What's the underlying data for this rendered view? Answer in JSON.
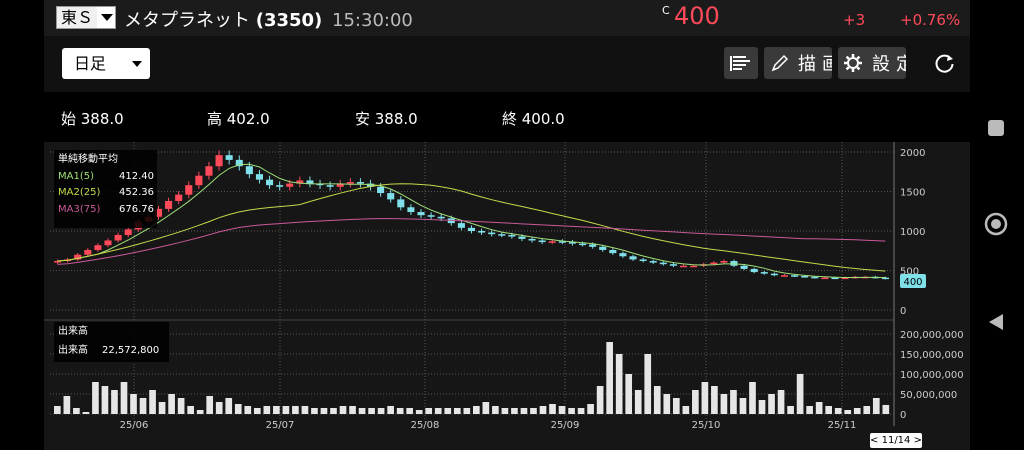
{
  "header": {
    "exchange": "東Ｓ",
    "name": "メタプラネット",
    "code": "(3350)",
    "time": "15:30:00",
    "flag": "C",
    "price": "400",
    "change": "+3",
    "change_pct": "+0.76%"
  },
  "toolbar": {
    "period": "日足",
    "draw_label": "描画",
    "settings_label": "設定"
  },
  "ohlc": {
    "open": "始 388.0",
    "high": "高 402.0",
    "low": "安 388.0",
    "close": "終 400.0"
  },
  "ma_legend": {
    "title": "単純移動平均",
    "ma1_label": "MA1(5)",
    "ma1_value": "412.40",
    "ma2_label": "MA2(25)",
    "ma2_value": "452.36",
    "ma3_label": "MA3(75)",
    "ma3_value": "676.76"
  },
  "volume_legend": {
    "title": "出来高",
    "label": "出来高",
    "value": "22,572,800"
  },
  "price_axis": [
    "2000",
    "1500",
    "1000",
    "500",
    "0"
  ],
  "price_tag": "400",
  "volume_axis": [
    "200,000,000",
    "150,000,000",
    "100,000,000",
    "50,000,000",
    "0"
  ],
  "date_axis": [
    "25/06",
    "25/07",
    "25/08",
    "25/09",
    "25/10",
    "25/11"
  ],
  "cursor_date": "< 11/14 >",
  "colors": {
    "up": "#ff4a5a",
    "down": "#7fe0ea",
    "ma1": "#9fe07a",
    "ma2": "#c8d84a",
    "ma3": "#c85a9a"
  },
  "chart_data": {
    "type": "candlestick",
    "ylim": [
      0,
      2000
    ],
    "volume_ylim": [
      0,
      200000000
    ],
    "series": [
      {
        "name": "MA1(5)",
        "last": 412.4
      },
      {
        "name": "MA2(25)",
        "last": 452.36
      },
      {
        "name": "MA3(75)",
        "last": 676.76
      }
    ],
    "close_path": [
      620,
      640,
      700,
      760,
      820,
      880,
      950,
      1020,
      1120,
      1180,
      1280,
      1380,
      1460,
      1580,
      1700,
      1820,
      1960,
      1900,
      1820,
      1720,
      1650,
      1580,
      1560,
      1600,
      1640,
      1600,
      1580,
      1560,
      1600,
      1620,
      1600,
      1560,
      1480,
      1400,
      1300,
      1240,
      1200,
      1180,
      1160,
      1100,
      1040,
      1000,
      980,
      960,
      950,
      930,
      900,
      880,
      860,
      870,
      860,
      840,
      830,
      800,
      760,
      720,
      680,
      640,
      620,
      600,
      580,
      560,
      560,
      560,
      580,
      600,
      620,
      560,
      520,
      480,
      460,
      440,
      440,
      430,
      420,
      410,
      410,
      405,
      410,
      420,
      420,
      410,
      400
    ],
    "volume_path": [
      20,
      45,
      15,
      5,
      80,
      70,
      60,
      80,
      50,
      40,
      60,
      30,
      50,
      40,
      20,
      10,
      45,
      30,
      40,
      25,
      20,
      15,
      20,
      20,
      20,
      20,
      20,
      15,
      15,
      15,
      20,
      20,
      15,
      15,
      15,
      20,
      15,
      15,
      10,
      15,
      15,
      15,
      15,
      15,
      20,
      30,
      20,
      15,
      15,
      15,
      15,
      20,
      25,
      20,
      15,
      15,
      25,
      70,
      180,
      150,
      100,
      60,
      150,
      70,
      50,
      40,
      20,
      60,
      80,
      70,
      50,
      60,
      40,
      80,
      35,
      50,
      60,
      20,
      100,
      20,
      30,
      20,
      15,
      10,
      15,
      20,
      40,
      22.6
    ],
    "volume_unit": "million"
  }
}
